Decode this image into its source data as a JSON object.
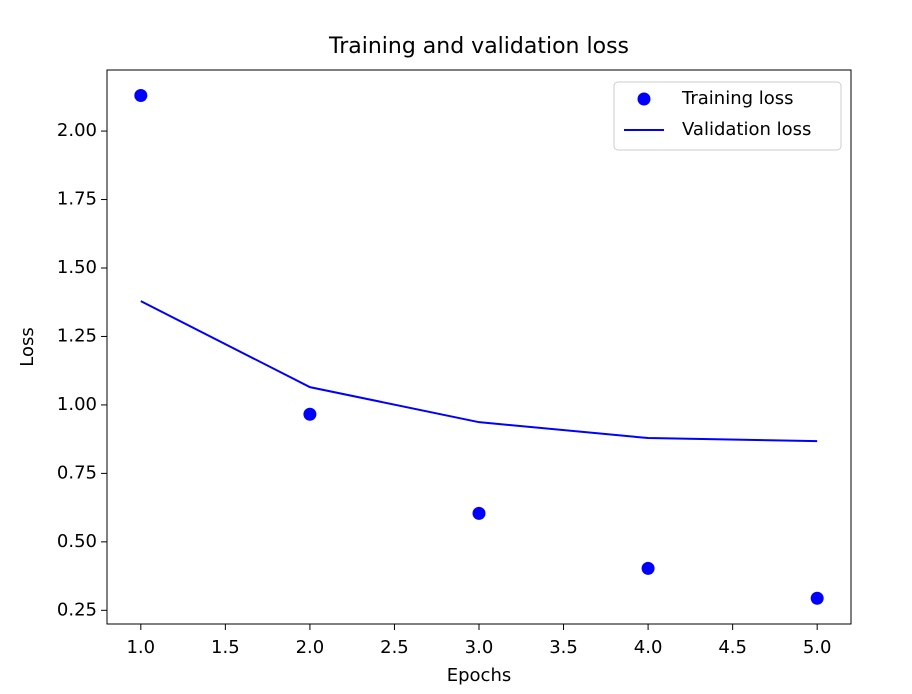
{
  "chart_data": {
    "type": "line",
    "title": "Training and validation loss",
    "xlabel": "Epochs",
    "ylabel": "Loss",
    "x": [
      1,
      2,
      3,
      4,
      5
    ],
    "series": [
      {
        "name": "Training loss",
        "color": "#0000ff",
        "style": "markers",
        "values": [
          2.13,
          0.966,
          0.604,
          0.403,
          0.294
        ]
      },
      {
        "name": "Validation loss",
        "color": "#0000ff",
        "style": "line",
        "values": [
          1.379,
          1.065,
          0.937,
          0.879,
          0.868
        ]
      }
    ],
    "xlim": [
      0.8,
      5.2
    ],
    "xticks": [
      {
        "value": 1,
        "label": "1.0"
      },
      {
        "value": 1.5,
        "label": "1.5"
      },
      {
        "value": 2,
        "label": "2.0"
      },
      {
        "value": 2.5,
        "label": "2.5"
      },
      {
        "value": 3,
        "label": "3.0"
      },
      {
        "value": 3.5,
        "label": "3.5"
      },
      {
        "value": 4,
        "label": "4.0"
      },
      {
        "value": 4.5,
        "label": "4.5"
      },
      {
        "value": 5,
        "label": "5.0"
      }
    ],
    "ylim": [
      0.2,
      2.223
    ],
    "yticks": [
      {
        "value": 0.25,
        "label": "0.25"
      },
      {
        "value": 0.5,
        "label": "0.50"
      },
      {
        "value": 0.75,
        "label": "0.75"
      },
      {
        "value": 1,
        "label": "1.00"
      },
      {
        "value": 1.25,
        "label": "1.25"
      },
      {
        "value": 1.5,
        "label": "1.50"
      },
      {
        "value": 1.75,
        "label": "1.75"
      },
      {
        "value": 2,
        "label": "2.00"
      }
    ],
    "grid": false,
    "legend": "upper right"
  }
}
